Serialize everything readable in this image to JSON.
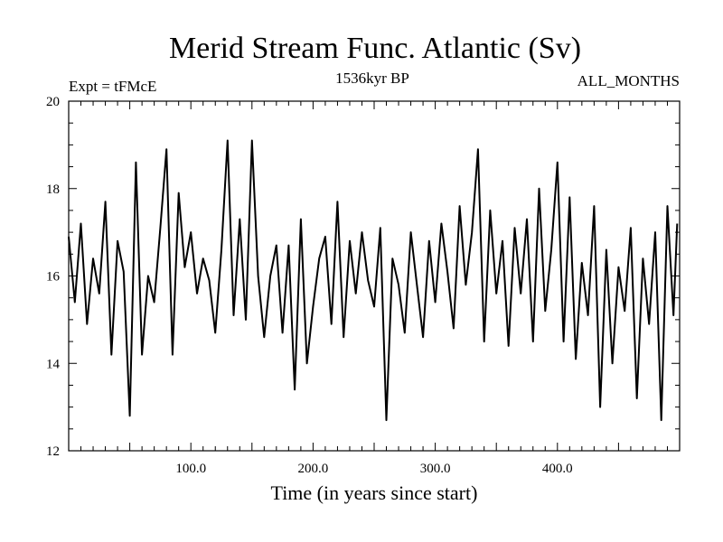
{
  "chart_data": {
    "type": "line",
    "title": "Merid Stream Func. Atlantic (Sv)",
    "subtitle_left": "Expt = tFMcE",
    "subtitle_center": "1536kyr BP",
    "subtitle_right": "ALL_MONTHS",
    "xlabel": "Time (in years since start)",
    "ylabel": "",
    "xlim": [
      0,
      500
    ],
    "ylim": [
      12,
      20
    ],
    "x_ticks": [
      100,
      200,
      300,
      400
    ],
    "x_tick_labels": [
      "100.0",
      "200.0",
      "300.0",
      "400.0"
    ],
    "y_ticks": [
      12,
      14,
      16,
      18,
      20
    ],
    "y_tick_labels": [
      "12",
      "14",
      "16",
      "18",
      "20"
    ],
    "grid": false,
    "series": [
      {
        "name": "Merid Stream Func. Atlantic",
        "color": "#000000",
        "x": [
          0,
          5,
          10,
          15,
          20,
          25,
          30,
          35,
          40,
          45,
          50,
          55,
          60,
          65,
          70,
          75,
          80,
          85,
          90,
          95,
          100,
          105,
          110,
          115,
          120,
          125,
          130,
          135,
          140,
          145,
          150,
          155,
          160,
          165,
          170,
          175,
          180,
          185,
          190,
          195,
          200,
          205,
          210,
          215,
          220,
          225,
          230,
          235,
          240,
          245,
          250,
          255,
          260,
          265,
          270,
          275,
          280,
          285,
          290,
          295,
          300,
          305,
          310,
          315,
          320,
          325,
          330,
          335,
          340,
          345,
          350,
          355,
          360,
          365,
          370,
          375,
          380,
          385,
          390,
          395,
          400,
          405,
          410,
          415,
          420,
          425,
          430,
          435,
          440,
          445,
          450,
          455,
          460,
          465,
          470,
          475,
          480,
          485,
          490,
          495,
          498
        ],
        "y": [
          16.9,
          15.4,
          17.2,
          14.9,
          16.4,
          15.6,
          17.7,
          14.2,
          16.8,
          16.1,
          12.8,
          18.6,
          14.2,
          16.0,
          15.4,
          17.1,
          18.9,
          14.2,
          17.9,
          16.2,
          17.0,
          15.6,
          16.4,
          15.9,
          14.7,
          16.6,
          19.1,
          15.1,
          17.3,
          15.0,
          19.1,
          16.0,
          14.6,
          16.0,
          16.7,
          14.7,
          16.7,
          13.4,
          17.3,
          14.0,
          15.3,
          16.4,
          16.9,
          14.9,
          17.7,
          14.6,
          16.8,
          15.6,
          17.0,
          15.9,
          15.3,
          17.1,
          12.7,
          16.4,
          15.8,
          14.7,
          17.0,
          15.8,
          14.6,
          16.8,
          15.4,
          17.2,
          16.1,
          14.8,
          17.6,
          15.8,
          17.0,
          18.9,
          14.5,
          17.5,
          15.6,
          16.8,
          14.4,
          17.1,
          15.6,
          17.3,
          14.5,
          18.0,
          15.2,
          16.6,
          18.6,
          14.5,
          17.8,
          14.1,
          16.3,
          15.1,
          17.6,
          13.0,
          16.6,
          14.0,
          16.2,
          15.2,
          17.1,
          13.2,
          16.4,
          14.9,
          17.0,
          12.7,
          17.6,
          15.1,
          17.2
        ]
      }
    ]
  }
}
